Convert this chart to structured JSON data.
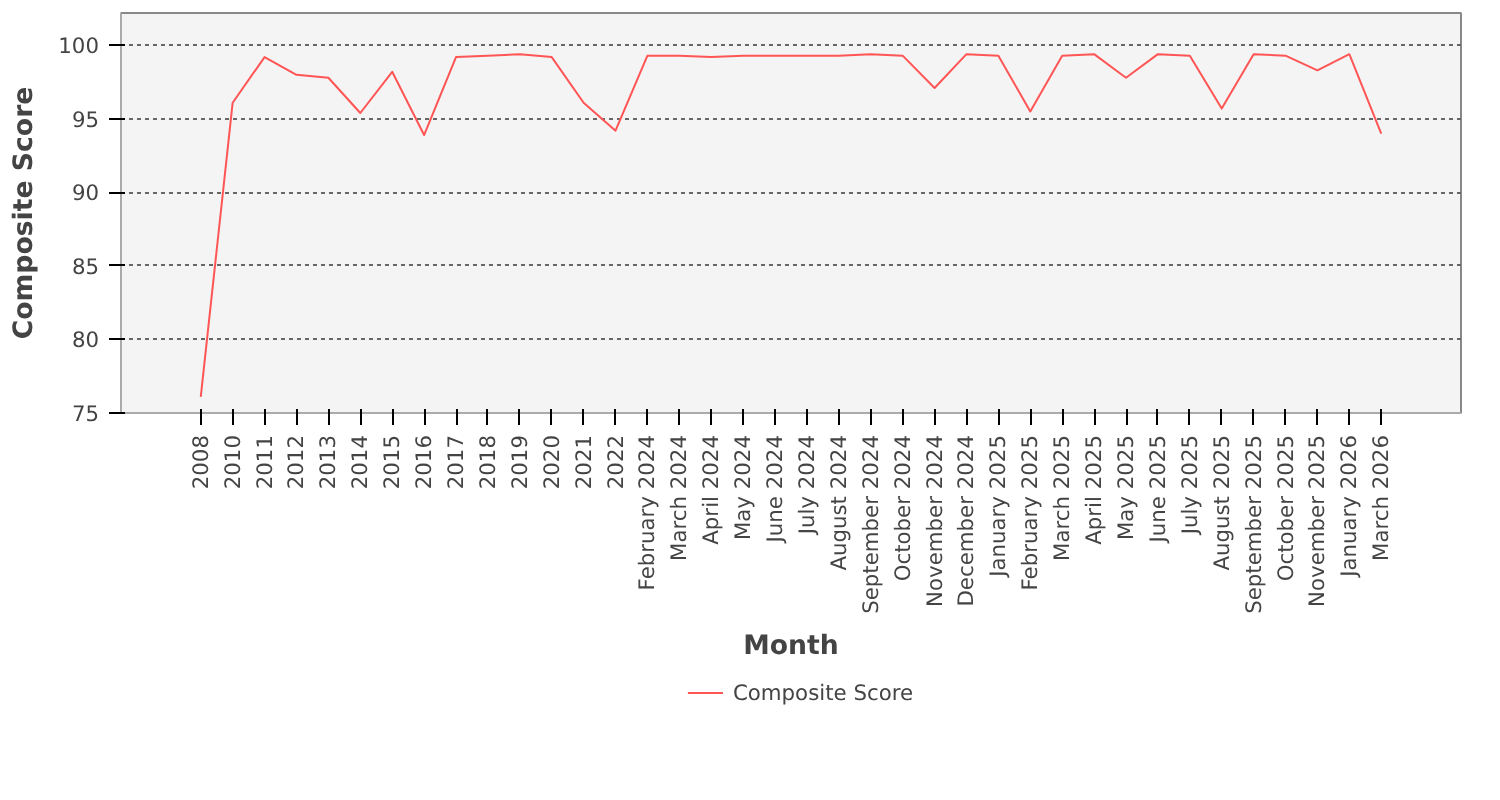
{
  "chart_data": {
    "type": "line",
    "xlabel": "Month",
    "ylabel": "Composite Score",
    "categories": [
      "2008",
      "2010",
      "2011",
      "2012",
      "2013",
      "2014",
      "2015",
      "2016",
      "2017",
      "2018",
      "2019",
      "2020",
      "2021",
      "2022",
      "February 2024",
      "March 2024",
      "April 2024",
      "May 2024",
      "June 2024",
      "July 2024",
      "August 2024",
      "September 2024",
      "October 2024",
      "November 2024",
      "December 2024",
      "January 2025",
      "February 2025",
      "March 2025",
      "April 2025",
      "May 2025",
      "June 2025",
      "July 2025",
      "August 2025",
      "September 2025",
      "October 2025",
      "November 2025",
      "January 2026",
      "March 2026"
    ],
    "series": [
      {
        "name": "Composite Score",
        "color": "#ff5555",
        "values": [
          76.1,
          96.1,
          99.2,
          98.0,
          97.8,
          95.4,
          98.2,
          93.9,
          99.2,
          99.3,
          99.4,
          99.2,
          96.1,
          94.2,
          99.3,
          99.3,
          99.2,
          99.3,
          99.3,
          99.3,
          99.3,
          99.4,
          99.3,
          97.1,
          99.4,
          99.3,
          95.5,
          99.3,
          99.4,
          97.8,
          99.4,
          99.3,
          95.7,
          99.4,
          99.3,
          98.3,
          99.4,
          94.0
        ]
      }
    ],
    "ylim": [
      75,
      102.2
    ],
    "yticks": [
      75,
      80,
      85,
      90,
      95,
      100
    ],
    "grid": "y",
    "legend": "bottom",
    "marker": "none",
    "line_style": "solid"
  }
}
